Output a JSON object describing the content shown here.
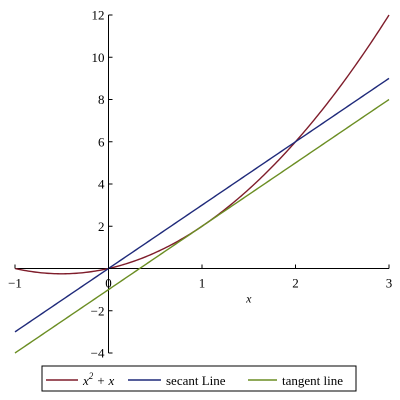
{
  "chart_data": {
    "type": "line",
    "title": "",
    "xlabel": "x",
    "ylabel": "",
    "xlim": [
      -1,
      3
    ],
    "ylim": [
      -4,
      12
    ],
    "x_ticks": [
      -1,
      0,
      1,
      2,
      3
    ],
    "y_ticks": [
      -4,
      -2,
      0,
      2,
      4,
      6,
      8,
      10,
      12
    ],
    "x_tick_labels": [
      "−1",
      "0",
      "1",
      "2",
      "3"
    ],
    "y_tick_labels": [
      "−4",
      "−2",
      "",
      "2",
      "4",
      "6",
      "8",
      "10",
      "12"
    ],
    "grid": false,
    "legend_position": "bottom",
    "series": [
      {
        "name": "x^2 + x",
        "legend_base": "x",
        "legend_sup": "2",
        "legend_rest": " + x",
        "color": "#7f1d2b",
        "function": "x^2 + x"
      },
      {
        "name": "secant Line",
        "color": "#1f2a7a",
        "function": "3x",
        "points": [
          [
            -1,
            -3
          ],
          [
            3,
            9
          ]
        ]
      },
      {
        "name": "tangent line",
        "color": "#6b8e23",
        "function": "3x - 1",
        "points": [
          [
            -1,
            -4
          ],
          [
            3,
            8
          ]
        ]
      }
    ]
  }
}
